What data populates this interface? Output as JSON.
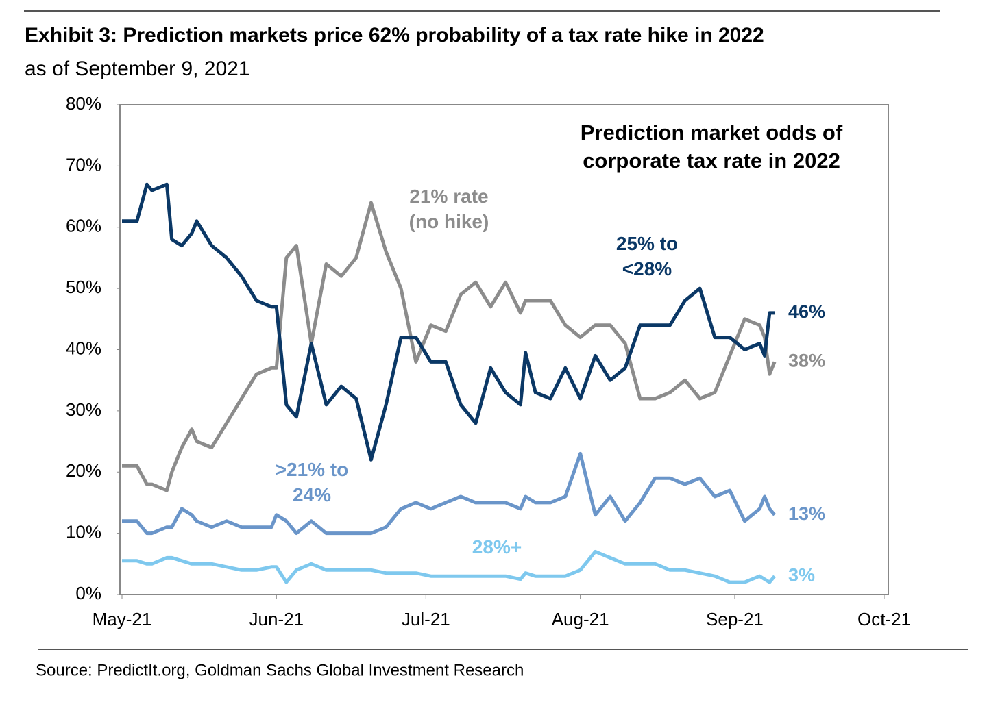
{
  "chart_data": {
    "type": "line",
    "title": "Exhibit 3: Prediction markets price 62% probability of a tax rate hike in 2022",
    "subtitle": "as of September 9, 2021",
    "annotation": "Prediction market odds of corporate tax rate in 2022",
    "source": "Source: PredictIt.org, Goldman Sachs Global Investment Research",
    "x": [
      0,
      3,
      5,
      6,
      9,
      10,
      12,
      14,
      15,
      18,
      21,
      24,
      27,
      30,
      31,
      33,
      35,
      38,
      41,
      44,
      47,
      50,
      53,
      56,
      59,
      62,
      65,
      68,
      71,
      74,
      77,
      80,
      81,
      83,
      86,
      89,
      92,
      95,
      98,
      101,
      104,
      107,
      110,
      113,
      116,
      119,
      122,
      125,
      128,
      129,
      130,
      131
    ],
    "xlim": [
      0,
      153
    ],
    "xticks": [
      {
        "value": 0,
        "label": "May-21"
      },
      {
        "value": 31,
        "label": "Jun-21"
      },
      {
        "value": 61,
        "label": "Jul-21"
      },
      {
        "value": 92,
        "label": "Aug-21"
      },
      {
        "value": 123,
        "label": "Sep-21"
      },
      {
        "value": 153,
        "label": "Oct-21"
      }
    ],
    "ylim": [
      0,
      80
    ],
    "yticks": [
      {
        "value": 0,
        "label": "0%"
      },
      {
        "value": 10,
        "label": "10%"
      },
      {
        "value": 20,
        "label": "20%"
      },
      {
        "value": 30,
        "label": "30%"
      },
      {
        "value": 40,
        "label": "40%"
      },
      {
        "value": 50,
        "label": "50%"
      },
      {
        "value": 60,
        "label": "60%"
      },
      {
        "value": 70,
        "label": "70%"
      },
      {
        "value": 80,
        "label": "80%"
      }
    ],
    "series": [
      {
        "name": "25% to <28%",
        "color": "#0b3866",
        "end_label": "46%",
        "values": [
          61,
          61,
          67,
          66,
          67,
          58,
          57,
          59,
          61,
          57,
          55,
          52,
          48,
          47,
          47,
          31,
          29,
          41,
          31,
          34,
          32,
          22,
          31,
          42,
          42,
          38,
          38,
          31,
          28,
          37,
          33,
          31,
          39.5,
          33,
          32,
          37,
          32,
          39,
          35,
          37,
          44,
          44,
          44,
          48,
          50,
          42,
          42,
          40,
          41,
          39,
          46,
          46
        ]
      },
      {
        "name": "21% rate (no hike)",
        "color": "#8c8c8c",
        "end_label": "38%",
        "values": [
          21,
          21,
          18,
          18,
          17,
          20,
          24,
          27,
          25,
          24,
          28,
          32,
          36,
          37,
          37,
          55,
          57,
          41,
          54,
          52,
          55,
          64,
          56,
          50,
          38,
          44,
          43,
          49,
          51,
          47,
          51,
          46,
          48,
          48,
          48,
          44,
          42,
          44,
          44,
          41,
          32,
          32,
          33,
          35,
          32,
          33,
          39,
          45,
          44,
          42,
          36,
          38
        ]
      },
      {
        "name": ">21% to 24%",
        "color": "#6a95c9",
        "end_label": "13%",
        "values": [
          12,
          12,
          10,
          10,
          11,
          11,
          14,
          13,
          12,
          11,
          12,
          11,
          11,
          11,
          13,
          12,
          10,
          12,
          10,
          10,
          10,
          10,
          11,
          14,
          15,
          14,
          15,
          16,
          15,
          15,
          15,
          14,
          16,
          15,
          15,
          16,
          23,
          13,
          16,
          12,
          15,
          19,
          19,
          18,
          19,
          16,
          17,
          12,
          14,
          16,
          14,
          13
        ]
      },
      {
        "name": "28%+",
        "color": "#7ec8ee",
        "end_label": "3%",
        "values": [
          5.5,
          5.5,
          5,
          5,
          6,
          6,
          5.5,
          5,
          5,
          5,
          4.5,
          4,
          4,
          4.5,
          4.5,
          2,
          4,
          5,
          4,
          4,
          4,
          4,
          3.5,
          3.5,
          3.5,
          3,
          3,
          3,
          3,
          3,
          3,
          2.5,
          3.5,
          3,
          3,
          3,
          4,
          7,
          6,
          5,
          5,
          5,
          4,
          4,
          3.5,
          3,
          2,
          2,
          3,
          2.5,
          2,
          3
        ]
      }
    ]
  }
}
